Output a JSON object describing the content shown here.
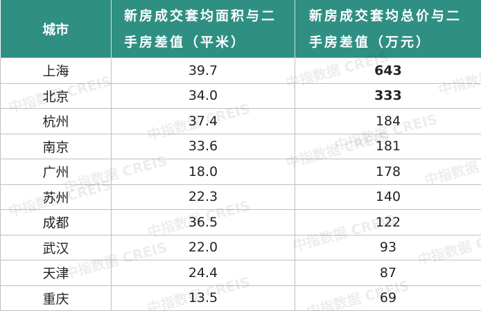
{
  "table": {
    "header": [
      "城市",
      "新房成交套均面积与二手房差值（平米）",
      "新房成交套均总价与二手房差值（万元）"
    ],
    "rows": [
      [
        "上海",
        "39.7",
        "643"
      ],
      [
        "北京",
        "34.0",
        "333"
      ],
      [
        "杭州",
        "37.4",
        "184"
      ],
      [
        "南京",
        "33.6",
        "181"
      ],
      [
        "广州",
        "18.0",
        "178"
      ],
      [
        "苏州",
        "22.3",
        "140"
      ],
      [
        "成都",
        "36.5",
        "122"
      ],
      [
        "武汉",
        "22.0",
        "93"
      ],
      [
        "天津",
        "24.4",
        "87"
      ],
      [
        "重庆",
        "13.5",
        "69"
      ]
    ]
  },
  "watermark": "中指数据 CREIS"
}
